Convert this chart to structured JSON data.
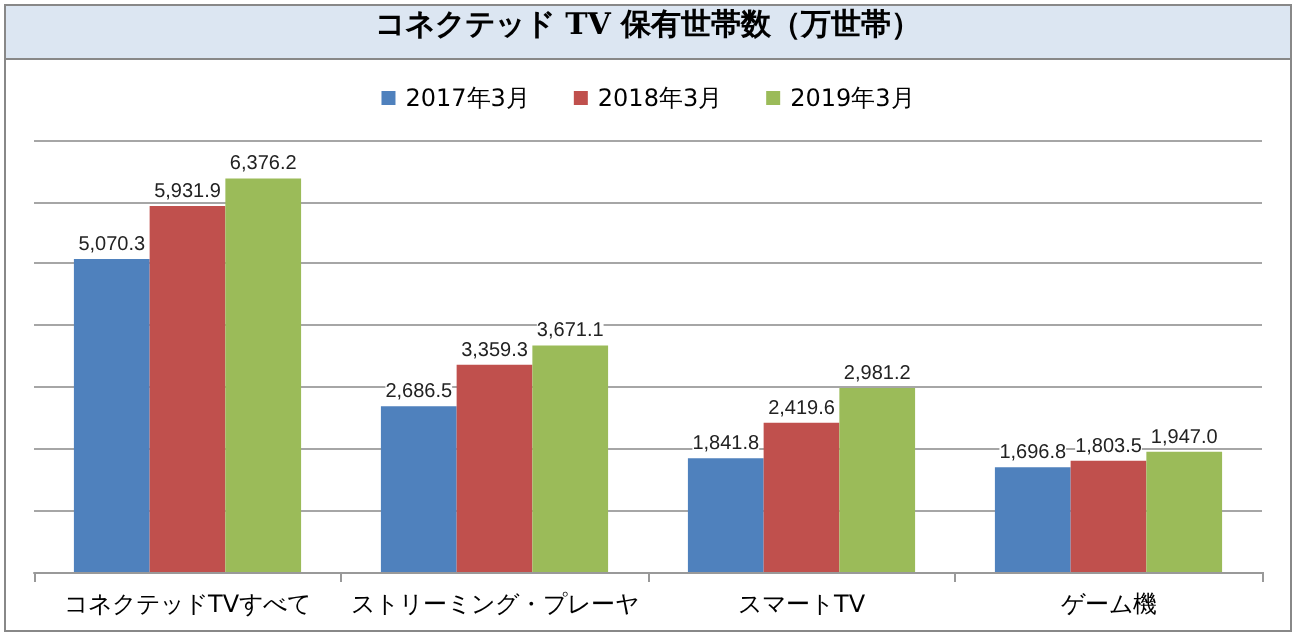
{
  "chart_data": {
    "type": "bar",
    "title": "コネクテッド TV 保有世帯数（万世帯）",
    "categories": [
      "コネクテッドTVすべて",
      "ストリーミング・プレーヤ",
      "スマートTV",
      "ゲーム機"
    ],
    "series": [
      {
        "name": "2017年3月",
        "color": "#4f81bd",
        "values": [
          5070.3,
          2686.5,
          1841.8,
          1696.8
        ],
        "value_labels": [
          "5,070.3",
          "2,686.5",
          "1,841.8",
          "1,696.8"
        ]
      },
      {
        "name": "2018年3月",
        "color": "#c0504d",
        "values": [
          5931.9,
          3359.3,
          2419.6,
          1803.5
        ],
        "value_labels": [
          "5,931.9",
          "3,359.3",
          "2,419.6",
          "1,803.5"
        ]
      },
      {
        "name": "2019年3月",
        "color": "#9bbb59",
        "values": [
          6376.2,
          3671.1,
          2981.2,
          1947.0
        ],
        "value_labels": [
          "6,376.2",
          "3,671.1",
          "2,981.2",
          "1,947.0"
        ]
      }
    ],
    "ylim": [
      0,
      7000
    ],
    "yticks": [
      {
        "value": 0,
        "label": null
      },
      {
        "value": 1000,
        "label": null
      },
      {
        "value": 2000,
        "label": null
      },
      {
        "value": 3000,
        "label": null
      },
      {
        "value": 4000,
        "label": null
      },
      {
        "value": 5000,
        "label": null
      },
      {
        "value": 6000,
        "label": null
      },
      {
        "value": 7000,
        "label": null
      }
    ],
    "tick_labels": "x",
    "grid": "y",
    "legend": "top"
  }
}
